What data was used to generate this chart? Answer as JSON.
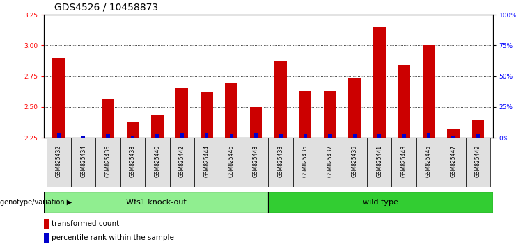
{
  "title": "GDS4526 / 10458873",
  "samples": [
    "GSM825432",
    "GSM825434",
    "GSM825436",
    "GSM825438",
    "GSM825440",
    "GSM825442",
    "GSM825444",
    "GSM825446",
    "GSM825448",
    "GSM825433",
    "GSM825435",
    "GSM825437",
    "GSM825439",
    "GSM825441",
    "GSM825443",
    "GSM825445",
    "GSM825447",
    "GSM825449"
  ],
  "transformed_count": [
    2.9,
    2.25,
    2.56,
    2.38,
    2.43,
    2.65,
    2.62,
    2.7,
    2.5,
    2.87,
    2.63,
    2.63,
    2.74,
    3.15,
    2.84,
    3.0,
    2.32,
    2.4
  ],
  "percentile_rank": [
    4,
    2,
    3,
    2,
    3,
    4,
    4,
    3,
    4,
    3,
    3,
    3,
    3,
    3,
    3,
    4,
    2,
    3
  ],
  "ylim_left": [
    2.25,
    3.25
  ],
  "ylim_right": [
    0,
    100
  ],
  "yticks_left": [
    2.25,
    2.5,
    2.75,
    3.0,
    3.25
  ],
  "yticks_right": [
    0,
    25,
    50,
    75,
    100
  ],
  "ytick_labels_right": [
    "0%",
    "25%",
    "50%",
    "75%",
    "100%"
  ],
  "group_knockout_label": "Wfs1 knock-out",
  "group_wildtype_label": "wild type",
  "group_knockout_color": "#90EE90",
  "group_wildtype_color": "#32CD32",
  "group_label_text": "genotype/variation",
  "bar_color_red": "#CC0000",
  "bar_color_blue": "#0000CC",
  "background_color": "#ffffff",
  "title_fontsize": 10,
  "tick_fontsize": 6.5,
  "legend_items": [
    "transformed count",
    "percentile rank within the sample"
  ],
  "n_knockout": 9,
  "n_wildtype": 9
}
